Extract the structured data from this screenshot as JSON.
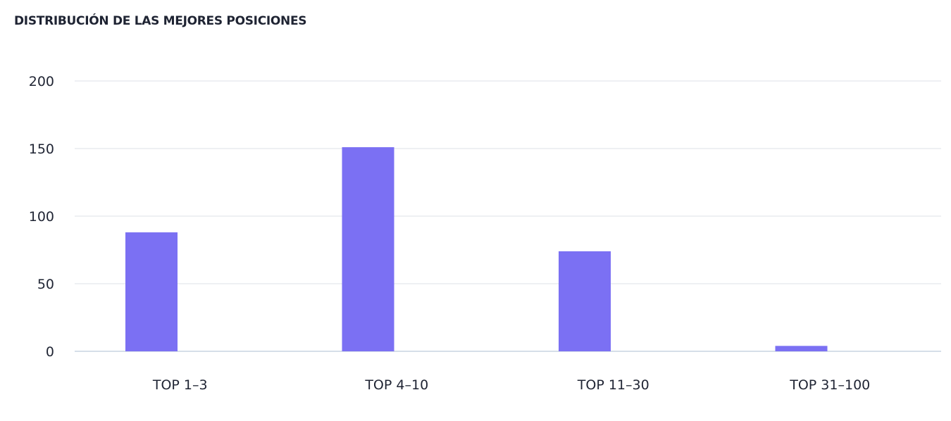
{
  "card": {
    "title": "DISTRIBUCIÓN DE LAS MEJORES POSICIONES"
  },
  "colors": {
    "bar": "#7b70f3",
    "grid": "#e4e6ec",
    "axis": "#c9d3e0",
    "text": "#1f2433"
  },
  "chart_data": {
    "type": "bar",
    "title": "DISTRIBUCIÓN DE LAS MEJORES POSICIONES",
    "categories": [
      "TOP 1–3",
      "TOP 4–10",
      "TOP 11–30",
      "TOP 31–100"
    ],
    "values": [
      88,
      151,
      74,
      4
    ],
    "yticks": [
      0,
      50,
      100,
      150,
      200
    ],
    "ylim": [
      0,
      200
    ],
    "xlabel": "",
    "ylabel": "",
    "grid": true,
    "legend": "none"
  }
}
